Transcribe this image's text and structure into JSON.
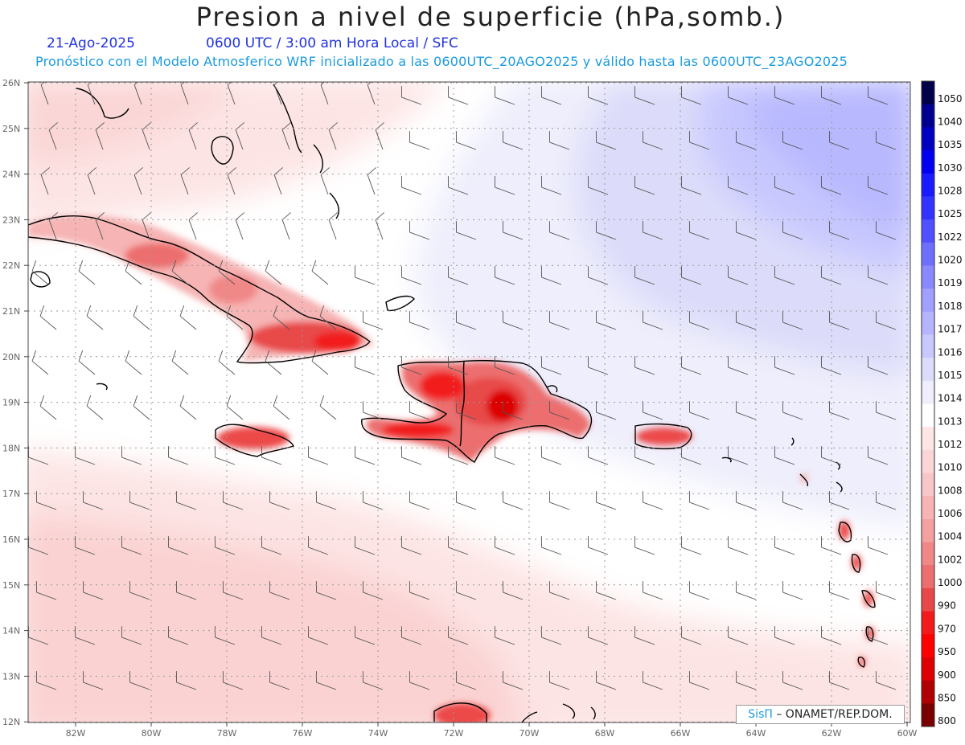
{
  "title": "Presion a nivel de superficie (hPa,somb.)",
  "date": "21-Ago-2025",
  "time_line": "0600 UTC / 3:00 am Hora Local / SFC",
  "forecast_line": "Pronóstico con el Modelo Atmosferico WRF inicializado a las 0600UTC_20AGO2025 y válido hasta las  0600UTC_23AGO2025",
  "lat_labels": [
    "26N",
    "25N",
    "24N",
    "23N",
    "22N",
    "21N",
    "20N",
    "19N",
    "18N",
    "17N",
    "16N",
    "15N",
    "14N",
    "13N",
    "12N"
  ],
  "lon_labels": [
    "82W",
    "80W",
    "78W",
    "76W",
    "74W",
    "72W",
    "70W",
    "68W",
    "66W",
    "64W",
    "62W",
    "60W"
  ],
  "colorbar": {
    "labels": [
      "1050",
      "1040",
      "1035",
      "1030",
      "1028",
      "1025",
      "1022",
      "1020",
      "1019",
      "1018",
      "1017",
      "1016",
      "1015",
      "1014",
      "1013",
      "1012",
      "1010",
      "1008",
      "1006",
      "1004",
      "1002",
      "1000",
      "990",
      "970",
      "950",
      "900",
      "850",
      "800"
    ],
    "colors": [
      "#00004a",
      "#000090",
      "#0000c0",
      "#0000f0",
      "#1a1aff",
      "#3333ff",
      "#5050ff",
      "#6e6eff",
      "#8888ff",
      "#a0a0ff",
      "#b4b4ff",
      "#c8c8ff",
      "#dcdcfa",
      "#eeeefc",
      "#ffffff",
      "#fde6e6",
      "#fbd6d6",
      "#f8c6c6",
      "#f6b4b4",
      "#f4a0a0",
      "#f08888",
      "#ec6e6e",
      "#e84848",
      "#f21a1a",
      "#ff0000",
      "#dd0000",
      "#b00000",
      "#7a0000"
    ]
  },
  "credit": {
    "brand": "SisΠ",
    "text": "– ONAMET/REP.DOM."
  }
}
